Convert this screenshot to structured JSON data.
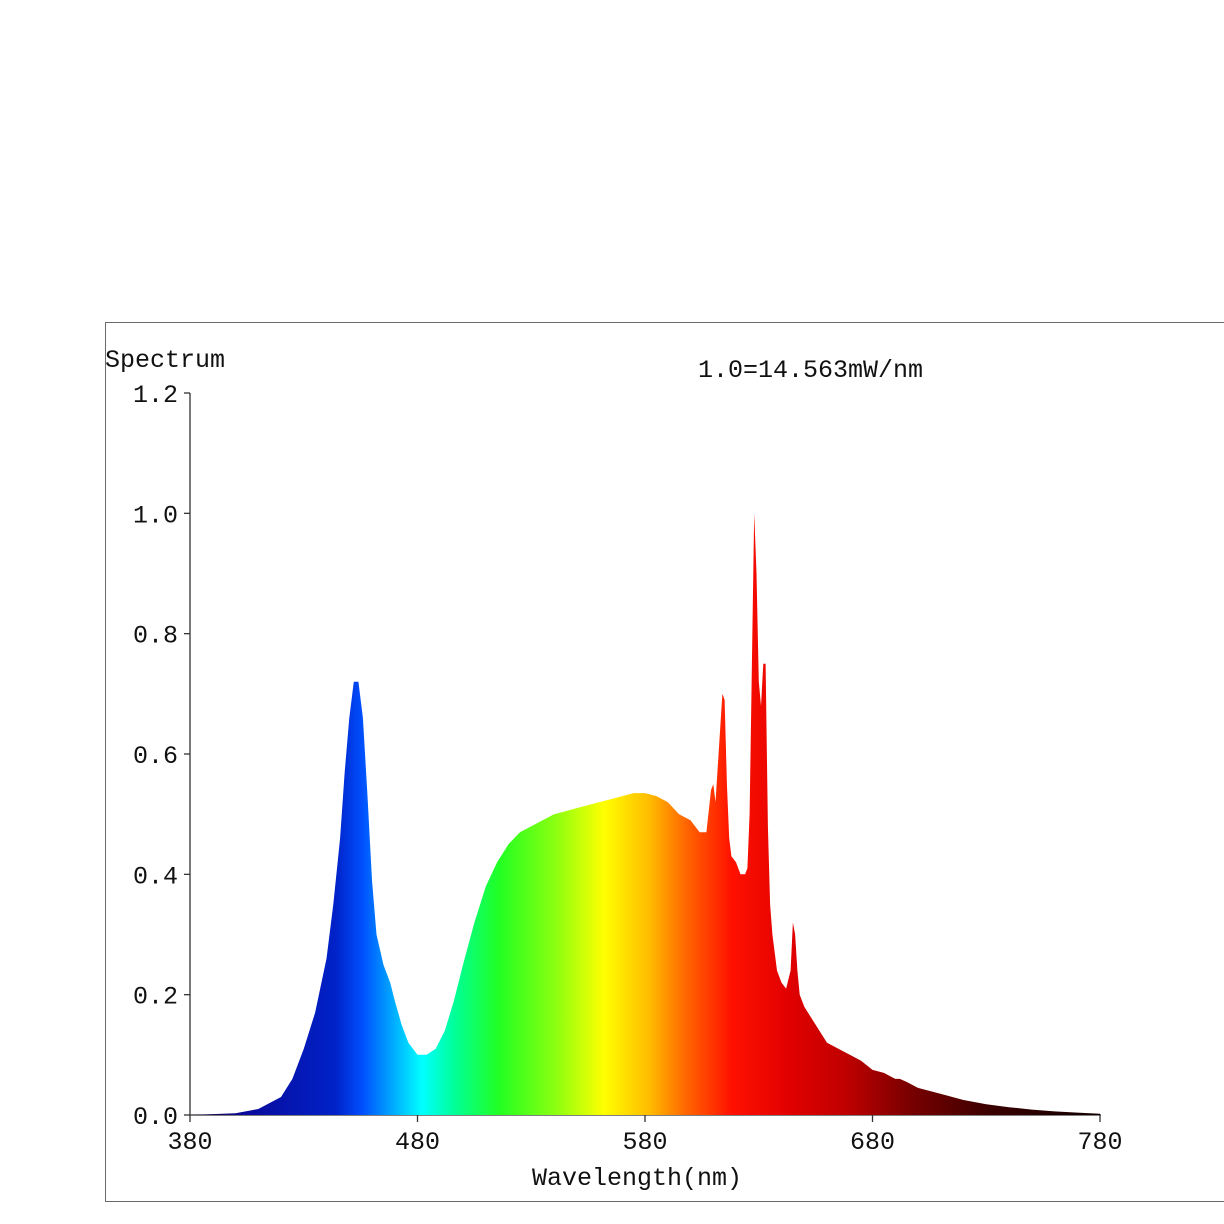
{
  "chart_data": {
    "type": "area",
    "title": "Spectrum",
    "annotation": "1.0=14.563mW/nm",
    "xlabel": "Wavelength(nm)",
    "ylabel": "",
    "xlim": [
      380,
      780
    ],
    "ylim": [
      0,
      1.2
    ],
    "x_ticks": [
      380,
      480,
      580,
      680,
      780
    ],
    "x_tick_labels": [
      "380",
      "480",
      "580",
      "680",
      "780"
    ],
    "y_ticks": [
      0,
      0.2,
      0.4,
      0.6,
      0.8,
      1.0,
      1.2
    ],
    "y_tick_labels": [
      "0.0",
      "0.2",
      "0.4",
      "0.6",
      "0.8",
      "1.0",
      "1.2"
    ],
    "fill": "visible-spectrum color gradient",
    "grid": false,
    "series": [
      {
        "x": [
          380,
          400,
          410,
          420,
          425,
          430,
          435,
          440,
          443,
          446,
          448,
          450,
          452,
          454,
          456,
          458,
          460,
          462,
          465,
          468,
          470,
          473,
          476,
          480,
          484,
          488,
          492,
          496,
          500,
          505,
          510,
          515,
          520,
          525,
          530,
          535,
          540,
          545,
          550,
          555,
          560,
          565,
          570,
          575,
          580,
          585,
          590,
          595,
          600,
          604,
          607,
          609,
          610,
          611,
          612,
          614,
          615,
          616,
          617,
          618,
          620,
          622,
          624,
          625,
          626,
          627,
          628,
          629,
          630,
          631,
          632,
          633,
          634,
          635,
          636,
          637,
          638,
          640,
          642,
          644,
          645,
          646,
          647,
          648,
          650,
          655,
          660,
          665,
          670,
          675,
          680,
          685,
          690,
          692,
          695,
          700,
          710,
          720,
          730,
          740,
          750,
          760,
          770,
          780
        ],
        "y": [
          0.0,
          0.003,
          0.01,
          0.03,
          0.06,
          0.11,
          0.17,
          0.26,
          0.35,
          0.46,
          0.57,
          0.66,
          0.72,
          0.72,
          0.66,
          0.53,
          0.39,
          0.3,
          0.25,
          0.22,
          0.19,
          0.15,
          0.12,
          0.1,
          0.1,
          0.11,
          0.14,
          0.19,
          0.25,
          0.32,
          0.38,
          0.42,
          0.45,
          0.47,
          0.48,
          0.49,
          0.5,
          0.505,
          0.51,
          0.515,
          0.52,
          0.525,
          0.53,
          0.535,
          0.535,
          0.53,
          0.52,
          0.5,
          0.49,
          0.47,
          0.47,
          0.54,
          0.55,
          0.52,
          0.58,
          0.7,
          0.69,
          0.55,
          0.46,
          0.43,
          0.42,
          0.4,
          0.4,
          0.41,
          0.5,
          0.75,
          1.0,
          0.9,
          0.72,
          0.68,
          0.75,
          0.75,
          0.48,
          0.35,
          0.3,
          0.27,
          0.24,
          0.22,
          0.21,
          0.24,
          0.32,
          0.3,
          0.24,
          0.2,
          0.18,
          0.15,
          0.12,
          0.11,
          0.1,
          0.09,
          0.075,
          0.07,
          0.06,
          0.06,
          0.055,
          0.045,
          0.035,
          0.025,
          0.018,
          0.013,
          0.009,
          0.006,
          0.004,
          0.002
        ]
      }
    ]
  }
}
